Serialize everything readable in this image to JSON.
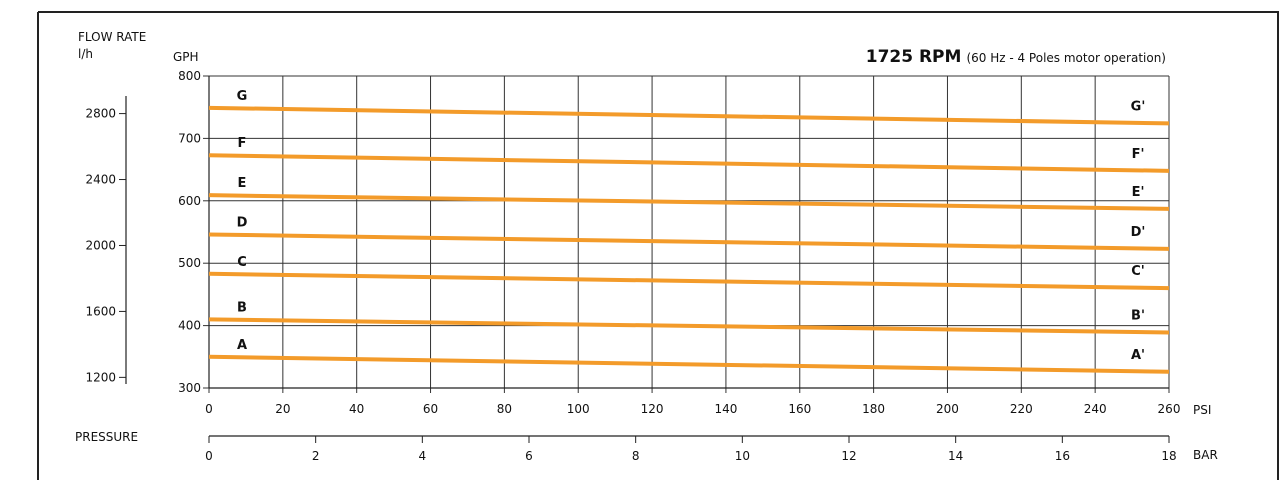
{
  "chart_data": {
    "type": "line",
    "title_bold": "1725 RPM",
    "title_note": "(60 Hz - 4 Poles motor operation)",
    "left_axis": {
      "label_line1": "FLOW RATE",
      "label_line2": "l/h",
      "ticks": [
        1200,
        1600,
        2000,
        2400,
        2800
      ]
    },
    "y_axis": {
      "label": "GPH",
      "range": [
        300,
        800
      ],
      "ticks": [
        300,
        400,
        500,
        600,
        700,
        800
      ]
    },
    "x_axis": {
      "unit": "PSI",
      "range": [
        0,
        260
      ],
      "ticks": [
        0,
        20,
        40,
        60,
        80,
        100,
        120,
        140,
        160,
        180,
        200,
        220,
        240,
        260
      ]
    },
    "bar_axis": {
      "section_label": "PRESSURE",
      "unit": "BAR",
      "range": [
        0,
        18
      ],
      "ticks": [
        0,
        2,
        4,
        6,
        8,
        10,
        12,
        14,
        16,
        18
      ]
    },
    "grid": true,
    "line_color": "#f39b2a",
    "series": [
      {
        "name": "A",
        "end_label": "A'",
        "x": [
          0,
          260
        ],
        "y": [
          350,
          326
        ]
      },
      {
        "name": "B",
        "end_label": "B'",
        "x": [
          0,
          260
        ],
        "y": [
          410,
          389
        ]
      },
      {
        "name": "C",
        "end_label": "C'",
        "x": [
          0,
          260
        ],
        "y": [
          483,
          460
        ]
      },
      {
        "name": "D",
        "end_label": "D'",
        "x": [
          0,
          260
        ],
        "y": [
          546,
          523
        ]
      },
      {
        "name": "E",
        "end_label": "E'",
        "x": [
          0,
          260
        ],
        "y": [
          609,
          587
        ]
      },
      {
        "name": "F",
        "end_label": "F'",
        "x": [
          0,
          260
        ],
        "y": [
          673,
          648
        ]
      },
      {
        "name": "G",
        "end_label": "G'",
        "x": [
          0,
          260
        ],
        "y": [
          749,
          724
        ]
      }
    ]
  }
}
